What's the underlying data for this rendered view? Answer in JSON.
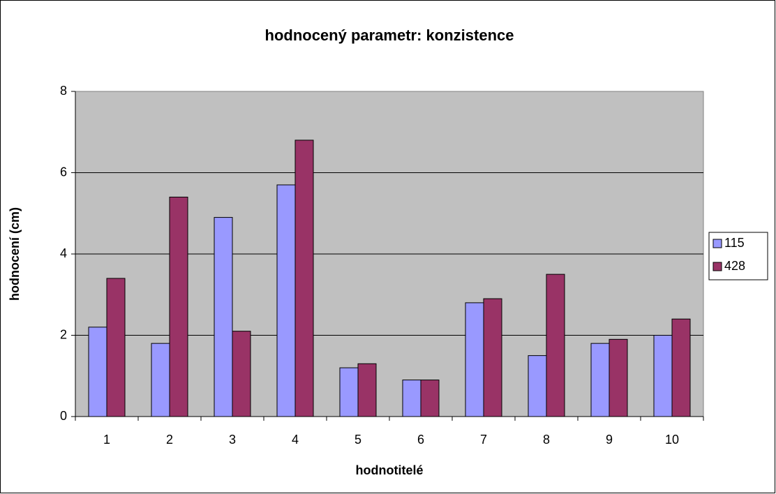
{
  "chart_data": {
    "type": "bar",
    "title": "hodnocený parametr: konzistence",
    "x_label": "hodnotitelé",
    "y_label": "hodnocení (cm)",
    "categories": [
      "1",
      "2",
      "3",
      "4",
      "5",
      "6",
      "7",
      "8",
      "9",
      "10"
    ],
    "series": [
      {
        "name": "115",
        "color": "#9999ff",
        "values": [
          2.2,
          1.8,
          4.9,
          5.7,
          1.2,
          0.9,
          2.8,
          1.5,
          1.8,
          2.0
        ]
      },
      {
        "name": "428",
        "color": "#993366",
        "values": [
          3.4,
          5.4,
          2.1,
          6.8,
          1.3,
          0.9,
          2.9,
          3.5,
          1.9,
          2.4
        ]
      }
    ],
    "ylim": [
      0,
      8
    ],
    "yticks": [
      0,
      2,
      4,
      6,
      8
    ],
    "grid": true,
    "legend": "right"
  }
}
